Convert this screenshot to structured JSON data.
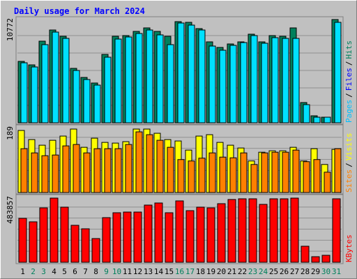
{
  "chart_data": [
    {
      "type": "bar",
      "title": "Daily usage for March 2024",
      "categories": [
        "1",
        "2",
        "3",
        "4",
        "5",
        "6",
        "7",
        "8",
        "9",
        "10",
        "11",
        "12",
        "13",
        "14",
        "15",
        "16",
        "17",
        "18",
        "19",
        "20",
        "21",
        "22",
        "23",
        "24",
        "25",
        "26",
        "27",
        "28",
        "29",
        "30",
        "31"
      ],
      "category_colors": [
        "#000000",
        "#00805c",
        "#00805c",
        "#000000",
        "#000000",
        "#000000",
        "#000000",
        "#000000",
        "#00805c",
        "#00805c",
        "#000000",
        "#000000",
        "#000000",
        "#000000",
        "#000000",
        "#00805c",
        "#00805c",
        "#000000",
        "#000000",
        "#000000",
        "#000000",
        "#000000",
        "#00805c",
        "#00805c",
        "#000000",
        "#000000",
        "#000000",
        "#000000",
        "#000000",
        "#00805c",
        "#00805c"
      ],
      "ylim": [
        0,
        10772
      ],
      "legend": [
        {
          "text": "Pages",
          "color": "#00c0ff"
        },
        {
          "text": "Files",
          "color": "#0000ff"
        },
        {
          "text": "Hits",
          "color": "#00805c"
        }
      ],
      "separator": "/",
      "series": [
        {
          "color": "#00805c",
          "values": [
            6320,
            5960,
            8402,
            9551,
            8905,
            5601,
            4668,
            4093,
            7038,
            8905,
            8977,
            9407,
            9767,
            9407,
            8905,
            10413,
            10341,
            9695,
            8330,
            7756,
            8115,
            8330,
            9120,
            8330,
            8977,
            8905,
            9767,
            2083,
            718,
            574,
            10628
          ]
        },
        {
          "color": "#00e0ff",
          "values": [
            6176,
            5745,
            8043,
            9336,
            8689,
            5386,
            4452,
            3878,
            6750,
            8618,
            8833,
            9192,
            9551,
            9048,
            8043,
            10269,
            10054,
            9551,
            7899,
            7469,
            7971,
            8258,
            8977,
            8187,
            8761,
            8689,
            8689,
            1867,
            574,
            574,
            10341
          ]
        }
      ]
    },
    {
      "type": "bar",
      "ylim": [
        0,
        189
      ],
      "legend": [
        {
          "text": "Sites",
          "color": "#ff8000"
        },
        {
          "text": "Visits",
          "color": "#ffff00"
        }
      ],
      "separator": "/",
      "series": [
        {
          "color": "#ffff00",
          "values": [
            177,
            151,
            135,
            149,
            161,
            181,
            129,
            155,
            143,
            141,
            145,
            181,
            181,
            169,
            151,
            147,
            121,
            161,
            165,
            143,
            135,
            127,
            90,
            115,
            119,
            119,
            129,
            90,
            125,
            80,
            123
          ]
        },
        {
          "color": "#ff8000",
          "values": [
            125,
            113,
            105,
            107,
            133,
            137,
            113,
            125,
            125,
            125,
            137,
            173,
            165,
            149,
            129,
            94,
            90,
            98,
            113,
            101,
            99,
            113,
            80,
            113,
            115,
            115,
            121,
            88,
            94,
            58,
            125
          ]
        }
      ]
    },
    {
      "type": "bar",
      "ylim": [
        0,
        483857
      ],
      "legend": [
        {
          "text": "KBytes",
          "color": "#ff0000"
        }
      ],
      "series": [
        {
          "color": "#ff0000",
          "values": [
            320874,
            295408,
            397273,
            468578,
            402367,
            269943,
            244475,
            173170,
            325967,
            361620,
            366713,
            366713,
            417644,
            432923,
            361620,
            448204,
            376899,
            402367,
            397273,
            427830,
            458391,
            463484,
            463484,
            422737,
            463484,
            463484,
            468578,
            117144,
            40746,
            50932,
            463484
          ]
        }
      ]
    }
  ]
}
